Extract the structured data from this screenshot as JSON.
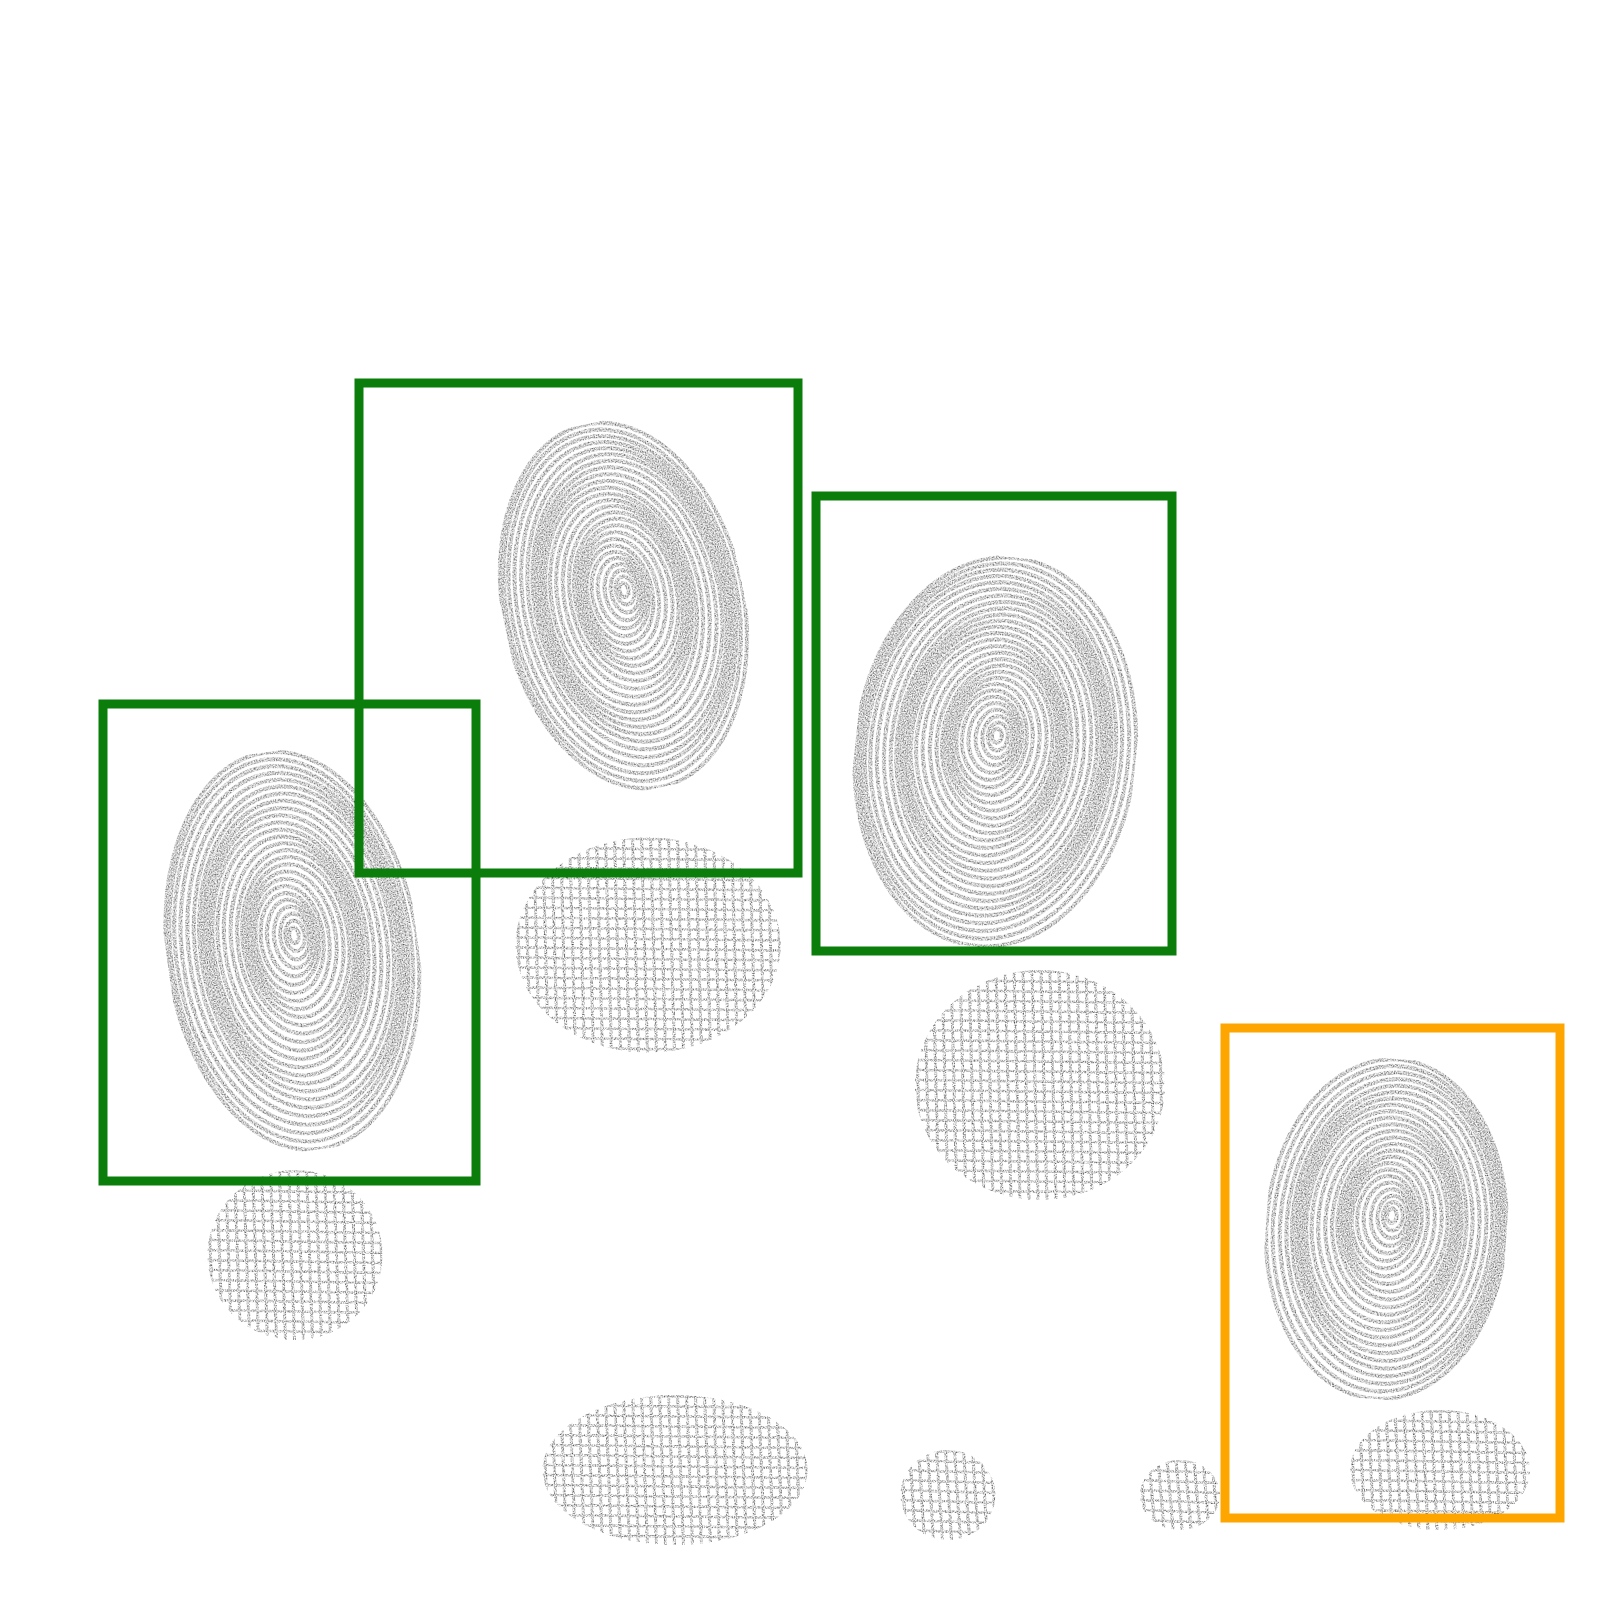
{
  "scene": {
    "background_color": "#ffffff",
    "ink_color": "#1a1a1a",
    "detected_color": "#0b7d0b",
    "flagged_color": "#ffa500"
  },
  "detections": [
    {
      "status": "detected",
      "color": "#0b7d0b"
    },
    {
      "status": "detected",
      "color": "#0b7d0b"
    },
    {
      "status": "detected",
      "color": "#0b7d0b"
    },
    {
      "status": "flagged",
      "color": "#ffa500"
    }
  ]
}
